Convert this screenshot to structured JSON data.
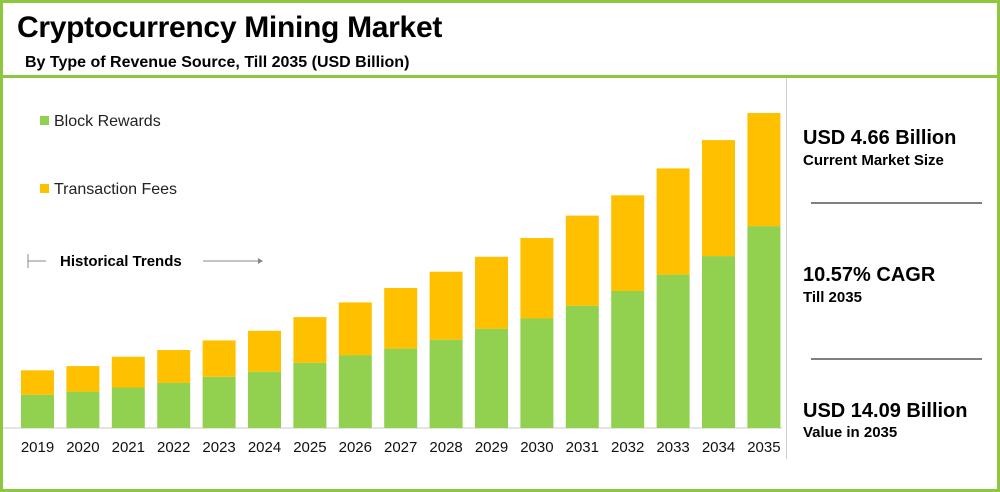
{
  "header": {
    "title": "Cryptocurrency Mining Market",
    "subtitle": "By Type of Revenue Source, Till 2035 (USD Billion)"
  },
  "annotations": {
    "historical_trends": "Historical Trends"
  },
  "kpis": [
    {
      "value": "USD 4.66 Billion",
      "label": "Current Market Size"
    },
    {
      "value": "10.57% CAGR",
      "label": "Till 2035"
    },
    {
      "value": "USD 14.09 Billion",
      "label": "Value in 2035"
    }
  ],
  "colors": {
    "block_rewards": "#92d050",
    "transaction_fees": "#ffc000",
    "frame": "#8dc63f"
  },
  "chart_data": {
    "type": "bar",
    "stacked": true,
    "title": "Cryptocurrency Mining Market",
    "subtitle": "By Type of Revenue Source, Till 2035 (USD Billion)",
    "xlabel": "",
    "ylabel": "",
    "ylim": [
      0,
      14.09
    ],
    "grid": false,
    "legend_position": "top-left",
    "categories": [
      "2019",
      "2020",
      "2021",
      "2022",
      "2023",
      "2024",
      "2025",
      "2026",
      "2027",
      "2028",
      "2029",
      "2030",
      "2031",
      "2032",
      "2033",
      "2034",
      "2035"
    ],
    "series": [
      {
        "name": "Block Rewards",
        "color": "#92d050",
        "values": [
          1.49,
          1.63,
          1.81,
          2.02,
          2.29,
          2.52,
          2.92,
          3.26,
          3.55,
          3.95,
          4.44,
          4.9,
          5.47,
          6.13,
          6.86,
          7.69,
          9.03
        ]
      },
      {
        "name": "Transaction Fees",
        "color": "#ffc000",
        "values": [
          1.09,
          1.14,
          1.38,
          1.47,
          1.63,
          1.83,
          2.04,
          2.36,
          2.71,
          3.04,
          3.22,
          3.6,
          4.03,
          4.28,
          4.75,
          5.19,
          5.06
        ]
      }
    ]
  }
}
